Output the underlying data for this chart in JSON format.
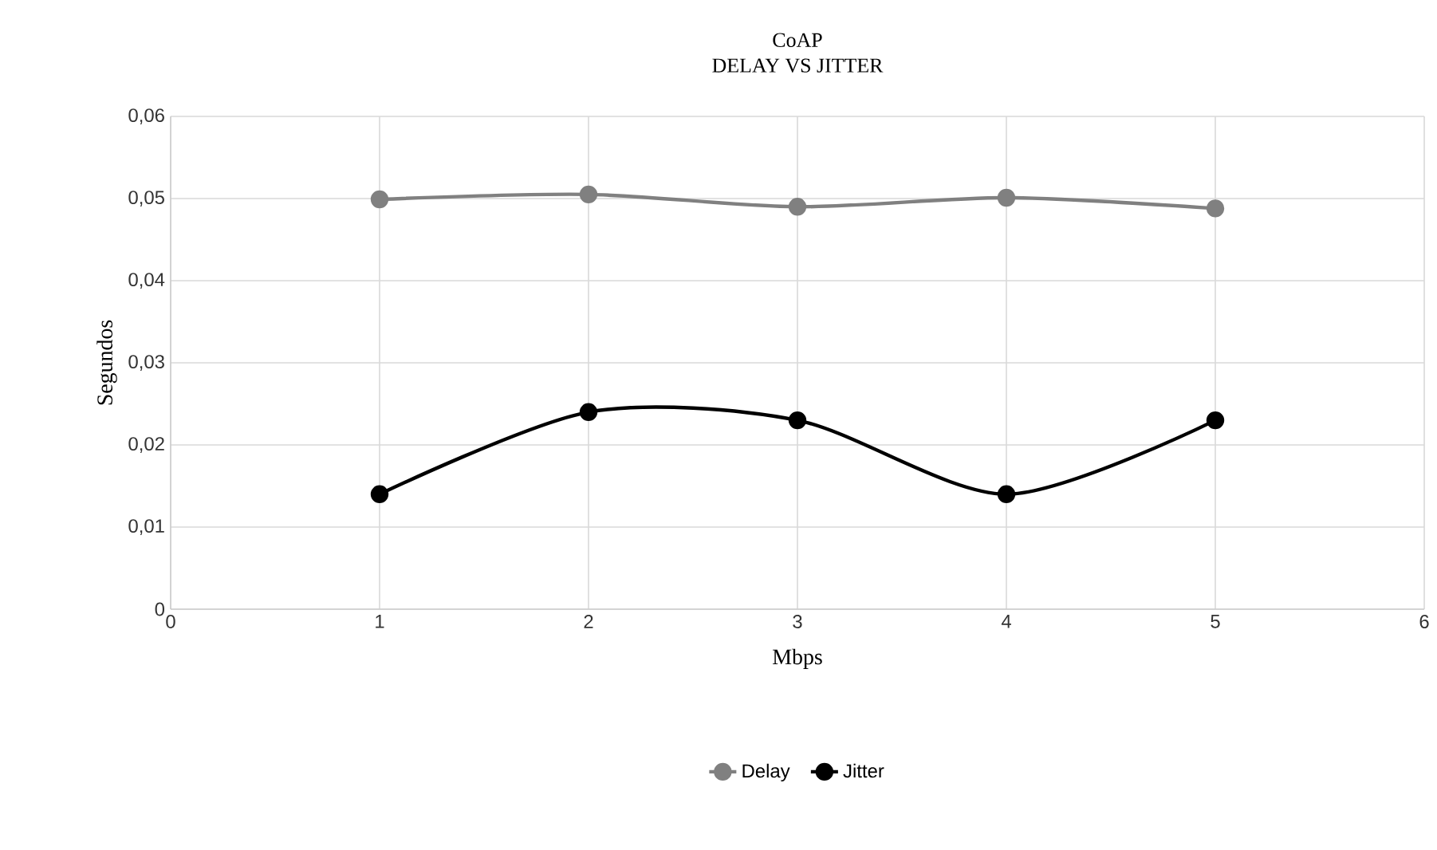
{
  "chart_data": {
    "type": "line",
    "title": "CoAP",
    "subtitle": "DELAY VS JITTER",
    "xlabel": "Mbps",
    "ylabel": "Segundos",
    "x": [
      1,
      2,
      3,
      4,
      5
    ],
    "series": [
      {
        "name": "Delay",
        "color": "#808080",
        "values": [
          0.0499,
          0.0505,
          0.049,
          0.0501,
          0.0488
        ]
      },
      {
        "name": "Jitter",
        "color": "#000000",
        "values": [
          0.014,
          0.024,
          0.023,
          0.014,
          0.023
        ]
      }
    ],
    "xlim": [
      0,
      6
    ],
    "xticks": [
      0,
      1,
      2,
      3,
      4,
      5,
      6
    ],
    "ylim": [
      0,
      0.06
    ],
    "yticks": [
      0,
      {
        "value": 0.01,
        "label": "0,01"
      },
      {
        "value": 0.02,
        "label": "0,02"
      },
      {
        "value": 0.03,
        "label": "0,03"
      },
      {
        "value": 0.04,
        "label": "0,04"
      },
      {
        "value": 0.05,
        "label": "0,05"
      },
      {
        "value": 0.06,
        "label": "0,06"
      }
    ],
    "grid": true,
    "legend": "bottom",
    "marker": "circle",
    "line_style": "solid"
  }
}
